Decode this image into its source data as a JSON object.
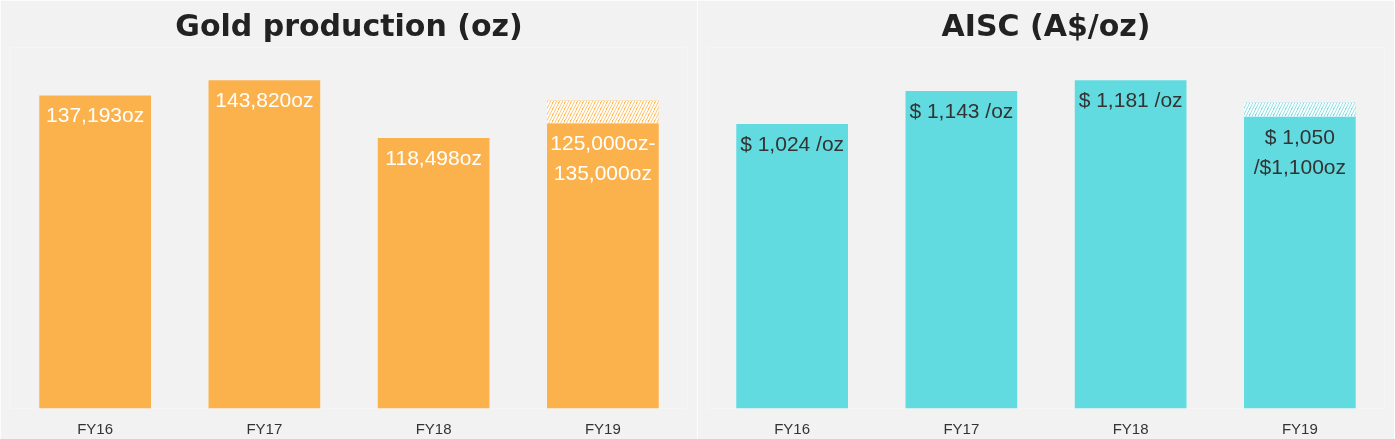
{
  "chart_data": [
    {
      "type": "bar",
      "title": "Gold production (oz)",
      "categories": [
        "FY16",
        "FY17",
        "FY18",
        "FY19"
      ],
      "stacked": true,
      "series": [
        {
          "color": "#fbb24c",
          "values": [
            137193,
            143820,
            118498,
            125000
          ],
          "value_labels": [
            "137,193oz",
            "143,820oz",
            "118,498oz",
            "125,000oz-\n135,000oz"
          ]
        },
        {
          "color": "#fbb24c",
          "values": [
            null,
            null,
            null,
            10000
          ]
        }
      ]
    },
    {
      "type": "bar",
      "title": "AISC (A$/oz)",
      "categories": [
        "FY16",
        "FY17",
        "FY18",
        "FY19"
      ],
      "stacked": true,
      "series": [
        {
          "color": "#62dbe0",
          "values": [
            1024,
            1143,
            1181,
            1050
          ],
          "value_labels": [
            "$ 1,024 /oz",
            "$ 1,143 /oz",
            "$ 1,181 /oz",
            "$ 1,050\n/$1,100oz"
          ]
        },
        {
          "color": "#62dbe0",
          "values": [
            null,
            null,
            null,
            50
          ]
        }
      ]
    }
  ]
}
